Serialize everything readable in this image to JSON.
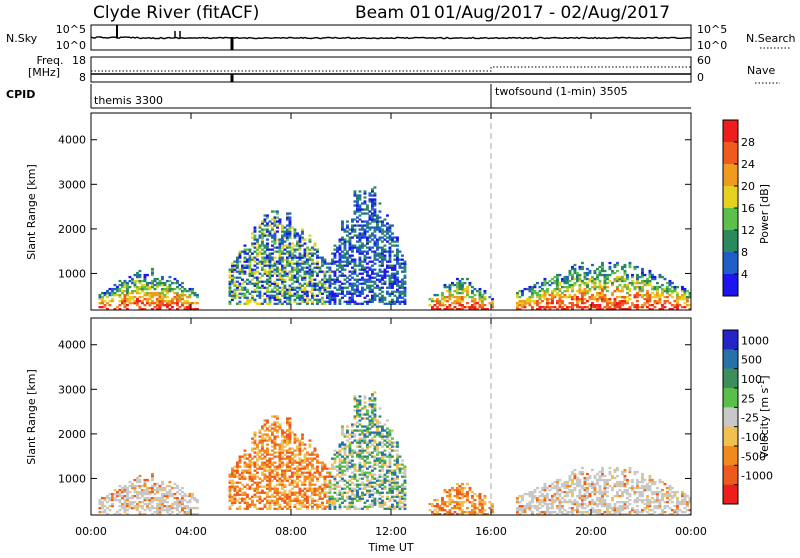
{
  "header": {
    "station": "Clyde River (fitACF)",
    "beam": "Beam 01",
    "dates": "01/Aug/2017 - 02/Aug/2017"
  },
  "noise_panel": {
    "left_label": "N.Sky",
    "left_ticks": [
      "10^5",
      "10^0"
    ],
    "right_ticks": [
      "10^5",
      "10^0"
    ],
    "right_label": "N.Search"
  },
  "freq_panel": {
    "left_label_top": "Freq.",
    "left_label_unit": "[MHz]",
    "left_ticks": [
      "18",
      "8"
    ],
    "right_ticks": [
      "60",
      "0"
    ],
    "right_label": "Nave"
  },
  "cpid_panel": {
    "label": "CPID",
    "modes": [
      {
        "name": "themis 3300",
        "start_hour": 0
      },
      {
        "name": "twofsound (1-min) 3505",
        "start_hour": 16
      }
    ]
  },
  "time_axis": {
    "tick_labels": [
      "00:00",
      "04:00",
      "08:00",
      "12:00",
      "16:00",
      "20:00",
      "00:00"
    ],
    "xlabel": "Time UT",
    "range_hours": [
      0,
      24
    ],
    "mode_change_hour": 16
  },
  "range_axis": {
    "ylabel": "Slant Range [km]",
    "tick_labels": [
      "1000",
      "2000",
      "3000",
      "4000"
    ],
    "tick_values": [
      1000,
      2000,
      3000,
      4000
    ],
    "ylim": [
      180,
      4600
    ]
  },
  "power_colorbar": {
    "label": "Power [dB]",
    "tick_labels": [
      "4",
      "8",
      "12",
      "16",
      "20",
      "24",
      "28"
    ],
    "range": [
      0,
      30
    ],
    "colors": [
      "#1e14f0",
      "#1f5ec8",
      "#2a8a5e",
      "#5cbf4a",
      "#e6d21e",
      "#f09a1e",
      "#f05a1e",
      "#ef1e1e"
    ]
  },
  "velocity_colorbar": {
    "label": "Velocity [m s",
    "label_sup": "-1",
    "label_close": "]",
    "tick_labels": [
      "1000",
      "500",
      "100",
      "25",
      "-25",
      "-100",
      "-500",
      "-1000"
    ],
    "colors": [
      "#2424c8",
      "#2870a8",
      "#3a8f5a",
      "#58c048",
      "#c8c8c8",
      "#f0c050",
      "#f08a1e",
      "#ee5a1e",
      "#ee1e1e"
    ]
  },
  "chart_data": [
    {
      "type": "line",
      "title": "N.Sky / N.Search",
      "x_range_hours": [
        0,
        24
      ],
      "y_scale": "log",
      "series": [
        {
          "name": "N.Sky",
          "x": [
            0,
            1,
            3.5,
            5.6,
            12,
            24
          ],
          "y": [
            10,
            200,
            50,
            10,
            15,
            20
          ]
        }
      ]
    },
    {
      "type": "line",
      "title": "Freq. / Nave",
      "x_range_hours": [
        0,
        24
      ],
      "series": [
        {
          "name": "Freq.",
          "unit": "MHz",
          "x": [
            0,
            24
          ],
          "y": [
            10.5,
            10.5
          ]
        },
        {
          "name": "Nave",
          "x": [
            0,
            16,
            16,
            24
          ],
          "y": [
            30,
            30,
            40,
            40
          ]
        }
      ]
    },
    {
      "type": "heatmap",
      "title": "Power [dB]",
      "x_range_hours": [
        0,
        24
      ],
      "ylim": [
        180,
        4600
      ],
      "cmap_range_db": [
        0,
        30
      ],
      "regions": [
        {
          "t": [
            0.3,
            4.3
          ],
          "r": [
            180,
            1100
          ],
          "level": "high"
        },
        {
          "t": [
            5.5,
            9.5
          ],
          "r": [
            300,
            2600
          ],
          "level": "mixed"
        },
        {
          "t": [
            9.5,
            12.5
          ],
          "r": [
            300,
            3100
          ],
          "level": "low"
        },
        {
          "t": [
            13.5,
            16.0
          ],
          "r": [
            180,
            900
          ],
          "level": "high"
        },
        {
          "t": [
            17.0,
            24.0
          ],
          "r": [
            180,
            1300
          ],
          "level": "high"
        }
      ]
    },
    {
      "type": "heatmap",
      "title": "Velocity [m s-1]",
      "x_range_hours": [
        0,
        24
      ],
      "ylim": [
        180,
        4600
      ],
      "cmap_levels": [
        1000,
        500,
        100,
        25,
        -25,
        -100,
        -500,
        -1000
      ],
      "regions": [
        {
          "t": [
            0.3,
            4.3
          ],
          "r": [
            180,
            1100
          ],
          "level": "ground-scatter"
        },
        {
          "t": [
            5.5,
            9.5
          ],
          "r": [
            300,
            2600
          ],
          "level": "negative"
        },
        {
          "t": [
            9.5,
            12.5
          ],
          "r": [
            300,
            3100
          ],
          "level": "mixed"
        },
        {
          "t": [
            13.5,
            16.0
          ],
          "r": [
            180,
            900
          ],
          "level": "negative"
        },
        {
          "t": [
            17.0,
            24.0
          ],
          "r": [
            180,
            1300
          ],
          "level": "ground-scatter"
        }
      ]
    }
  ]
}
